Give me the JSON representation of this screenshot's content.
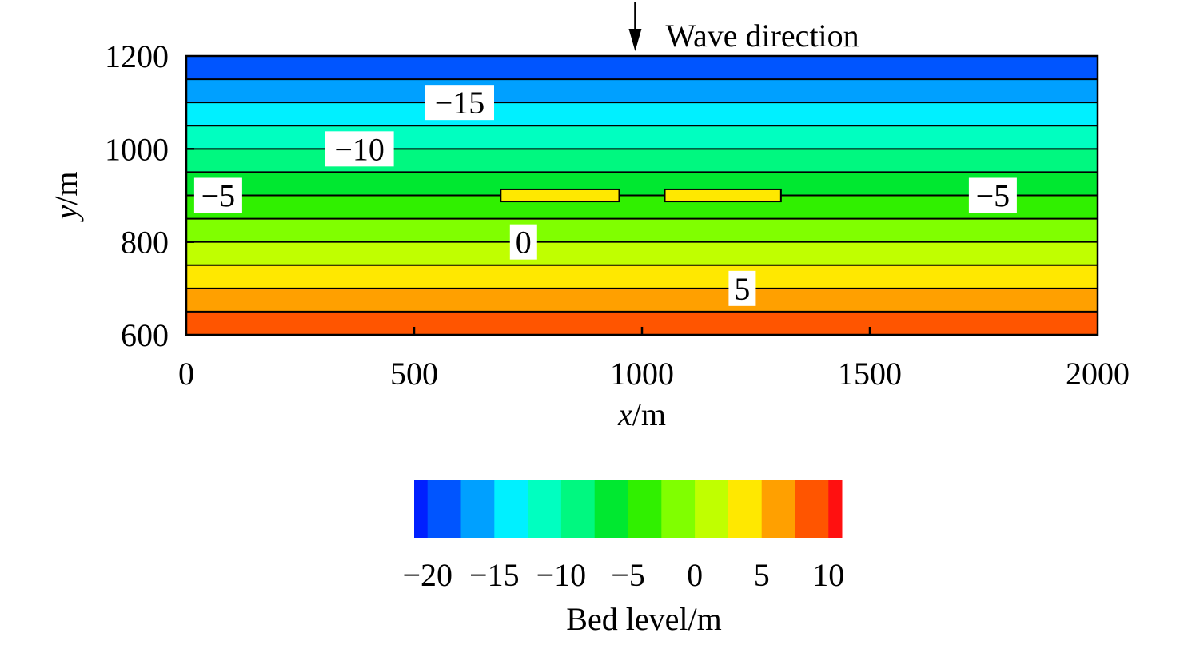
{
  "chart_data": {
    "type": "heatmap",
    "title": "",
    "annotation": "Wave direction",
    "xlabel": {
      "var": "x",
      "unit": "/m"
    },
    "ylabel": {
      "var": "y",
      "unit": "/m"
    },
    "xlim": [
      0,
      2000
    ],
    "ylim": [
      600,
      1200
    ],
    "xticks": [
      0,
      500,
      1000,
      1500,
      2000
    ],
    "yticks": [
      600,
      800,
      1000,
      1200
    ],
    "wave_arrow_x": 985,
    "bands": [
      {
        "y0": 600,
        "y1": 650,
        "level": 7.5,
        "color": "#FF5500"
      },
      {
        "y0": 650,
        "y1": 700,
        "level": 5,
        "color": "#FFA000"
      },
      {
        "y0": 700,
        "y1": 750,
        "level": 2.5,
        "color": "#FFE800"
      },
      {
        "y0": 750,
        "y1": 800,
        "level": 0,
        "color": "#C0FF00"
      },
      {
        "y0": 800,
        "y1": 850,
        "level": -2.5,
        "color": "#80FF00"
      },
      {
        "y0": 850,
        "y1": 900,
        "level": -5,
        "color": "#30F000"
      },
      {
        "y0": 900,
        "y1": 950,
        "level": -7.5,
        "color": "#00E830"
      },
      {
        "y0": 950,
        "y1": 1000,
        "level": -10,
        "color": "#00F880"
      },
      {
        "y0": 1000,
        "y1": 1050,
        "level": -12.5,
        "color": "#00FFC0"
      },
      {
        "y0": 1050,
        "y1": 1100,
        "level": -15,
        "color": "#00F0FF"
      },
      {
        "y0": 1100,
        "y1": 1150,
        "level": -17.5,
        "color": "#00A0FF"
      },
      {
        "y0": 1150,
        "y1": 1200,
        "level": -20,
        "color": "#0055FF"
      }
    ],
    "contour_lines_y": [
      650,
      700,
      750,
      800,
      850,
      900,
      950,
      1000,
      1050,
      1100,
      1150
    ],
    "contour_labels": [
      {
        "text": "−15",
        "x": 600,
        "y": 1100
      },
      {
        "text": "−10",
        "x": 380,
        "y": 1000
      },
      {
        "text": "−5",
        "x": 70,
        "y": 900
      },
      {
        "text": "−5",
        "x": 1770,
        "y": 900
      },
      {
        "text": "0",
        "x": 740,
        "y": 800
      },
      {
        "text": "5",
        "x": 1220,
        "y": 700
      }
    ],
    "structures": [
      {
        "x0": 690,
        "x1": 950,
        "y0": 887,
        "y1": 913,
        "color": "#FFE800"
      },
      {
        "x0": 1050,
        "x1": 1305,
        "y0": 887,
        "y1": 913,
        "color": "#FFE800"
      }
    ],
    "colorbar": {
      "title": "Bed level/m",
      "range": [
        -21,
        11
      ],
      "tick_values": [
        -20,
        -15,
        -10,
        -5,
        0,
        5,
        10
      ],
      "tick_labels": [
        "−20",
        "−15",
        "−10",
        "−5",
        "0",
        "5",
        "10"
      ],
      "segments": [
        {
          "from": -21,
          "to": -20,
          "color": "#0020FF"
        },
        {
          "from": -20,
          "to": -17.5,
          "color": "#0055FF"
        },
        {
          "from": -17.5,
          "to": -15,
          "color": "#00A0FF"
        },
        {
          "from": -15,
          "to": -12.5,
          "color": "#00F0FF"
        },
        {
          "from": -12.5,
          "to": -10,
          "color": "#00FFC0"
        },
        {
          "from": -10,
          "to": -7.5,
          "color": "#00F880"
        },
        {
          "from": -7.5,
          "to": -5,
          "color": "#00E830"
        },
        {
          "from": -5,
          "to": -2.5,
          "color": "#30F000"
        },
        {
          "from": -2.5,
          "to": 0,
          "color": "#80FF00"
        },
        {
          "from": 0,
          "to": 2.5,
          "color": "#C0FF00"
        },
        {
          "from": 2.5,
          "to": 5,
          "color": "#FFE800"
        },
        {
          "from": 5,
          "to": 7.5,
          "color": "#FFA000"
        },
        {
          "from": 7.5,
          "to": 10,
          "color": "#FF5500"
        },
        {
          "from": 10,
          "to": 11,
          "color": "#FF1010"
        }
      ]
    }
  }
}
